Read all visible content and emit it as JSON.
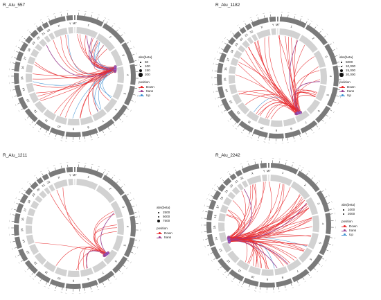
{
  "panels": [
    {
      "title": "R_Alu_557",
      "size_legend": {
        "title": "abs(beta)",
        "labels": [
          "50",
          "100",
          "150",
          "200"
        ]
      },
      "position_legend": {
        "title": "position",
        "labels": [
          "Down",
          "trans",
          "Up"
        ]
      }
    },
    {
      "title": "R_Alu_1182",
      "size_legend": {
        "title": "abs(beta)",
        "labels": [
          "5000",
          "10,000",
          "15,000",
          "20,000"
        ]
      },
      "position_legend": {
        "title": "position",
        "labels": [
          "Down",
          "trans",
          "Up"
        ]
      }
    },
    {
      "title": "R_Alu_1211",
      "size_legend": {
        "title": "abs(beta)",
        "labels": [
          "2500",
          "5000",
          "7500"
        ]
      },
      "position_legend": {
        "title": "position",
        "labels": [
          "Down",
          "trans"
        ]
      }
    },
    {
      "title": "R_Alu_2242",
      "size_legend": {
        "title": "abs(beta)",
        "labels": [
          "1000",
          "2000"
        ]
      },
      "position_legend": {
        "title": "position",
        "labels": [
          "Down",
          "trans",
          "Up"
        ]
      }
    }
  ],
  "colors": {
    "Down": "#e8282b",
    "trans": "#9a3f8f",
    "Up": "#3d8fd1",
    "ideogram": "#7a7a7a",
    "track": "#d2d2d2",
    "hub": "#8a5fd0"
  },
  "chromosomes": [
    "1",
    "2",
    "3",
    "4",
    "5",
    "6",
    "7",
    "8",
    "9",
    "10",
    "11",
    "12",
    "13",
    "14",
    "15",
    "16",
    "17",
    "18",
    "19",
    "20",
    "21",
    "22",
    "X",
    "Y",
    "MT"
  ],
  "chart_data": [
    {
      "type": "chord",
      "title": "R_Alu_557",
      "hub_angle_deg": 80,
      "link_counts": {
        "Down": 28,
        "trans": 3,
        "Up": 12
      }
    },
    {
      "type": "chord",
      "title": "R_Alu_1182",
      "hub_angle_deg": 150,
      "link_counts": {
        "Down": 40,
        "trans": 2,
        "Up": 1
      }
    },
    {
      "type": "chord",
      "title": "R_Alu_1211",
      "hub_angle_deg": 130,
      "link_counts": {
        "Down": 14,
        "trans": 2,
        "Up": 0
      }
    },
    {
      "type": "chord",
      "title": "R_Alu_2242",
      "hub_angle_deg": 250,
      "link_counts": {
        "Down": 60,
        "trans": 4,
        "Up": 2
      }
    }
  ]
}
